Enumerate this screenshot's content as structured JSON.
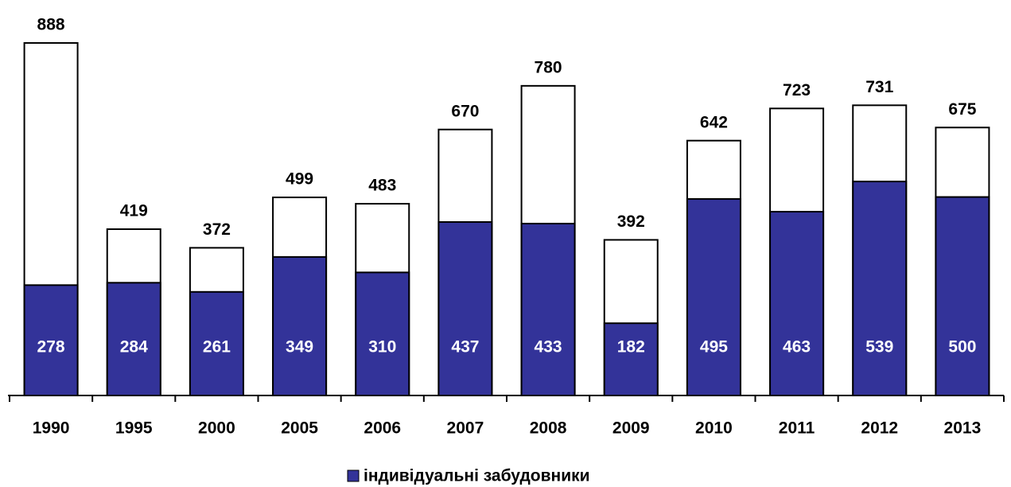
{
  "chart_data": {
    "type": "bar",
    "categories": [
      "1990",
      "1995",
      "2000",
      "2005",
      "2006",
      "2007",
      "2008",
      "2009",
      "2010",
      "2011",
      "2012",
      "2013"
    ],
    "totals": [
      888,
      419,
      372,
      499,
      483,
      670,
      780,
      392,
      642,
      723,
      731,
      675
    ],
    "totals_color": "#ffffff",
    "series": [
      {
        "name": "індивідуальні забудовники",
        "color": "#333399",
        "values": [
          278,
          284,
          261,
          349,
          310,
          437,
          433,
          182,
          495,
          463,
          539,
          500
        ]
      }
    ],
    "ylim": [
      0,
      900
    ],
    "legend": "bottom"
  }
}
